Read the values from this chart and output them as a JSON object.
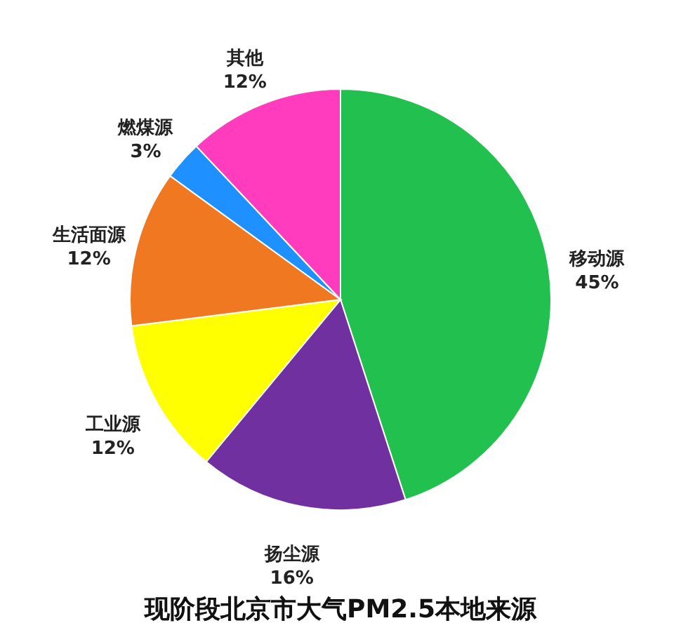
{
  "chart_data": {
    "type": "pie",
    "title": "现阶段北京市大气PM2.5本地来源",
    "categories": [
      "移动源",
      "扬尘源",
      "工业源",
      "生活面源",
      "燃煤源",
      "其他"
    ],
    "values": [
      45,
      16,
      12,
      12,
      3,
      12
    ],
    "value_labels": [
      "45%",
      "16%",
      "12%",
      "12%",
      "3%",
      "12%"
    ],
    "colors": [
      "#22c04e",
      "#7030a0",
      "#ffff00",
      "#f07820",
      "#1e90ff",
      "#ff3cbe"
    ],
    "legend": false
  }
}
